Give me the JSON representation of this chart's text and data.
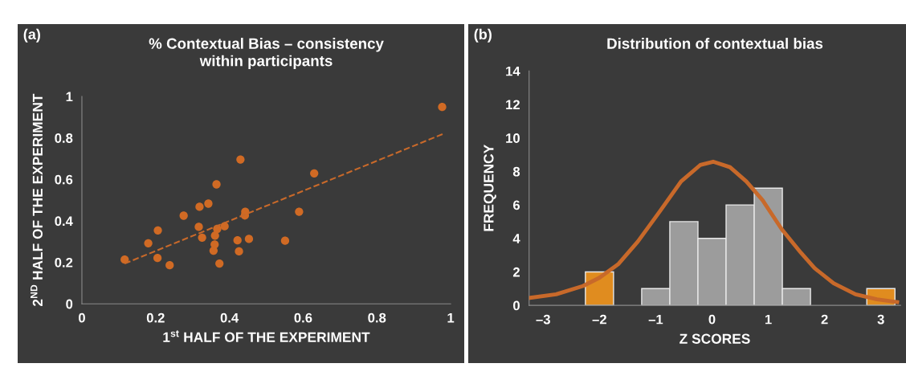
{
  "chart_data": [
    {
      "type": "scatter",
      "title": "% Contextual Bias – consistency\nwithin participants",
      "xlabel": "1$^{st}$ HALF OF THE EXPERIMENT",
      "ylabel": "2$^{ND}$ HALF OF THE EXPERIMENT",
      "annotations": [
        "(a)"
      ],
      "xlim": [
        0,
        1
      ],
      "ylim": [
        0,
        1
      ],
      "xticks": [
        0,
        0.2,
        0.4,
        0.6,
        0.8,
        1
      ],
      "yticks": [
        0,
        0.2,
        0.4,
        0.6,
        0.8,
        1
      ],
      "series": [
        {
          "type": "scatter",
          "marker": "circle",
          "color": "#d06a24",
          "x": [
            0.116,
            0.18,
            0.206,
            0.205,
            0.238,
            0.276,
            0.317,
            0.319,
            0.326,
            0.343,
            0.365,
            0.367,
            0.361,
            0.36,
            0.357,
            0.373,
            0.387,
            0.43,
            0.422,
            0.426,
            0.443,
            0.442,
            0.453,
            0.551,
            0.589,
            0.63,
            0.977
          ],
          "values": [
            0.213,
            0.292,
            0.354,
            0.221,
            0.186,
            0.425,
            0.371,
            0.468,
            0.319,
            0.483,
            0.576,
            0.361,
            0.329,
            0.286,
            0.256,
            0.194,
            0.374,
            0.696,
            0.306,
            0.253,
            0.444,
            0.426,
            0.313,
            0.304,
            0.444,
            0.629,
            0.949
          ]
        },
        {
          "type": "line",
          "color": "#c8692a",
          "line_style": "dashed",
          "x": [
            0.116,
            0.979
          ],
          "values": [
            0.194,
            0.819
          ]
        }
      ]
    },
    {
      "type": "histogram",
      "title": "Distribution of contextual bias",
      "xlabel": "Z SCORES",
      "ylabel": "FREQUENCY",
      "annotations": [
        "(b)"
      ],
      "bins": [
        -2.25,
        -1.75,
        -1.25,
        -0.75,
        -0.25,
        0.25,
        0.75,
        1.25,
        1.75,
        2.25,
        2.75,
        3.25
      ],
      "values": [
        2,
        0,
        1,
        5,
        4,
        6,
        7,
        1,
        0,
        0,
        1
      ],
      "colors": [
        "#e08c1f",
        "#9c9c9c",
        "#9c9c9c",
        "#9c9c9c",
        "#9c9c9c",
        "#9c9c9c",
        "#9c9c9c",
        "#9c9c9c",
        "#9c9c9c",
        "#9c9c9c",
        "#e08c1f"
      ],
      "xlim": [
        -3.25,
        3.35
      ],
      "ylim": [
        0,
        14
      ],
      "xticks": [
        {
          "value": -3,
          "label": "–3"
        },
        {
          "value": -2,
          "label": "–2"
        },
        {
          "value": -1,
          "label": "–1"
        },
        0,
        1,
        2,
        3
      ],
      "yticks": [
        0,
        2,
        4,
        6,
        8,
        10,
        12,
        14
      ],
      "series": [
        {
          "type": "line",
          "color": "#c8692a",
          "x": [
            -3.23,
            -2.77,
            -2.29,
            -2.0,
            -1.66,
            -1.32,
            -0.93,
            -0.55,
            -0.21,
            0.02,
            0.32,
            0.61,
            0.9,
            1.24,
            1.58,
            1.82,
            2.16,
            2.55,
            2.93,
            3.29
          ],
          "values": [
            0.45,
            0.66,
            1.16,
            1.65,
            2.48,
            3.8,
            5.6,
            7.4,
            8.38,
            8.58,
            8.25,
            7.4,
            6.27,
            4.54,
            3.14,
            2.23,
            1.32,
            0.66,
            0.36,
            0.2
          ]
        }
      ]
    }
  ]
}
